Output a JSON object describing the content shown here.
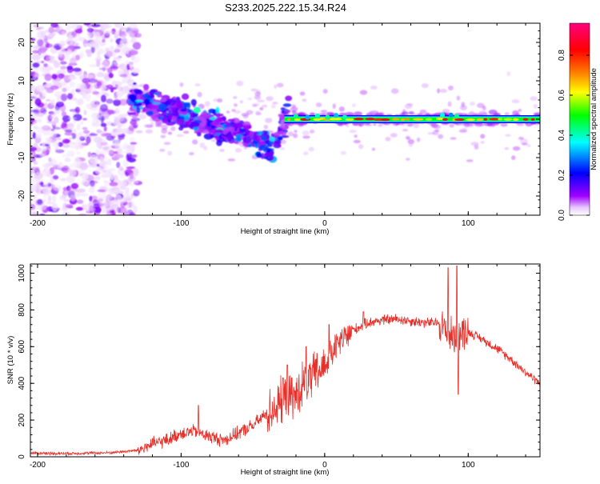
{
  "title": "S233.2025.222.15.34.R24",
  "chart_data": [
    {
      "type": "heatmap",
      "title": "S233.2025.222.15.34.R24",
      "xlabel": "Height of straight line (km)",
      "ylabel": "Frequency (Hz)",
      "xlim": [
        -205,
        150
      ],
      "ylim": [
        -25,
        25
      ],
      "xticks": [
        -200,
        -100,
        0,
        100
      ],
      "yticks": [
        -20,
        -10,
        0,
        10,
        20
      ],
      "colorbar": {
        "label": "Normalized spectral amplitude",
        "range": [
          0,
          0.96
        ],
        "ticks": [
          0.0,
          0.2,
          0.4,
          0.6,
          0.8
        ],
        "colormap": [
          "#ffffff",
          "#a000ff",
          "#0000ff",
          "#00ffff",
          "#00ff00",
          "#ffff00",
          "#ff8000",
          "#ff0000",
          "#ff00c0"
        ]
      },
      "features": [
        {
          "name": "scattered noise",
          "x_range": [
            -205,
            -130
          ],
          "freq_range": [
            -25,
            25
          ],
          "amplitude": 0.1
        },
        {
          "name": "descending scatter band",
          "x_range": [
            -135,
            -25
          ],
          "freq_start": 5,
          "freq_end": -9,
          "amplitude": 0.25
        },
        {
          "name": "steady tone",
          "x_range": [
            -30,
            150
          ],
          "freq": 0,
          "amplitude": 0.85
        }
      ]
    },
    {
      "type": "line",
      "title": "",
      "xlabel": "Height of straight line (km)",
      "ylabel": "SNR (10 * v/v)",
      "xlim": [
        -205,
        150
      ],
      "ylim": [
        0,
        1050
      ],
      "xticks": [
        -200,
        -100,
        0,
        100
      ],
      "yticks": [
        0,
        200,
        400,
        600,
        800,
        1000
      ],
      "color": "#e8302a",
      "x": [
        -205,
        -180,
        -150,
        -130,
        -120,
        -110,
        -100,
        -90,
        -80,
        -70,
        -60,
        -50,
        -40,
        -30,
        -20,
        -15,
        -10,
        -5,
        0,
        5,
        10,
        20,
        30,
        40,
        50,
        60,
        70,
        80,
        85,
        90,
        95,
        100,
        110,
        120,
        130,
        140,
        150
      ],
      "values": [
        20,
        18,
        22,
        35,
        70,
        90,
        130,
        140,
        110,
        90,
        130,
        170,
        240,
        300,
        330,
        400,
        420,
        460,
        500,
        560,
        620,
        690,
        730,
        745,
        750,
        740,
        730,
        730,
        680,
        650,
        680,
        680,
        640,
        590,
        530,
        460,
        400
      ],
      "spikes": [
        {
          "x": -88,
          "peak": 280
        },
        {
          "x": -29,
          "peak": 430
        },
        {
          "x": -26,
          "peak": 500
        },
        {
          "x": -13,
          "peak": 600
        },
        {
          "x": 3,
          "peak": 720
        },
        {
          "x": 27,
          "peak": 790
        },
        {
          "x": 86,
          "peak": 1030
        },
        {
          "x": 92,
          "peak": 1040
        },
        {
          "x": 93,
          "peak": 340
        }
      ]
    }
  ]
}
